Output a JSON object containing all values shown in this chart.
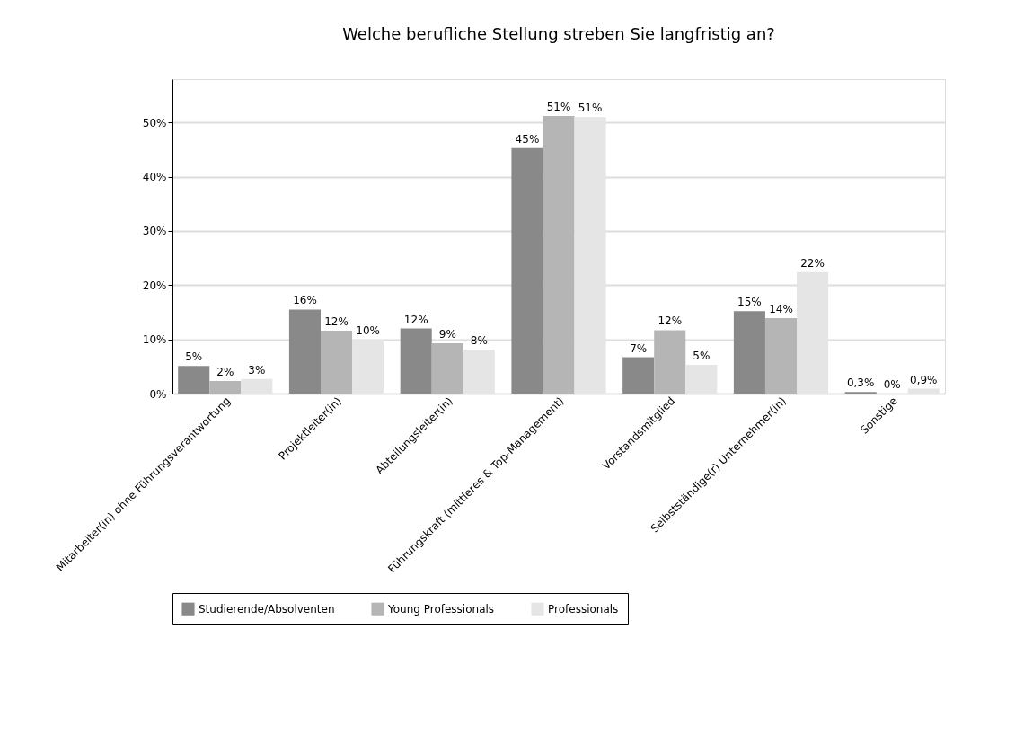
{
  "chart_data": {
    "type": "bar",
    "title": "Welche berufliche Stellung streben Sie langfristig an?",
    "categories": [
      "Mitarbeiter(in) ohne Führungsverantwortung",
      "Projektleiter(in)",
      "Abteilungsleiter(in)",
      "Führungskraft (mittleres & Top-Management)",
      "Vorstandsmitglied",
      "Selbstständige(r) Unternehmer(in)",
      "Sonstige"
    ],
    "series": [
      {
        "name": "Studierende/Absolventen",
        "color": "#898989",
        "values": [
          5.1,
          15.5,
          12,
          45.3,
          6.7,
          15.2,
          0.3
        ],
        "value_labels": [
          "5%",
          "16%",
          "12%",
          "45%",
          "7%",
          "15%",
          "0,3%"
        ]
      },
      {
        "name": "Young Professionals",
        "color": "#b5b5b5",
        "values": [
          2.3,
          11.6,
          9.3,
          51.2,
          11.7,
          13.9,
          0
        ],
        "value_labels": [
          "2%",
          "12%",
          "9%",
          "51%",
          "12%",
          "14%",
          "0%"
        ]
      },
      {
        "name": "Professionals",
        "color": "#e5e5e5",
        "values": [
          2.7,
          10,
          8.1,
          51,
          5.3,
          22.4,
          0.9
        ],
        "value_labels": [
          "3%",
          "10%",
          "8%",
          "51%",
          "5%",
          "22%",
          "0,9%"
        ]
      }
    ],
    "ylim": [
      0,
      58
    ],
    "yticks": [
      {
        "value": 0,
        "label": "0%"
      },
      {
        "value": 10,
        "label": "10%"
      },
      {
        "value": 20,
        "label": "20%"
      },
      {
        "value": 30,
        "label": "30%"
      },
      {
        "value": 40,
        "label": "40%"
      },
      {
        "value": 50,
        "label": "50%"
      }
    ],
    "grid": "y",
    "legend": "bottom"
  }
}
